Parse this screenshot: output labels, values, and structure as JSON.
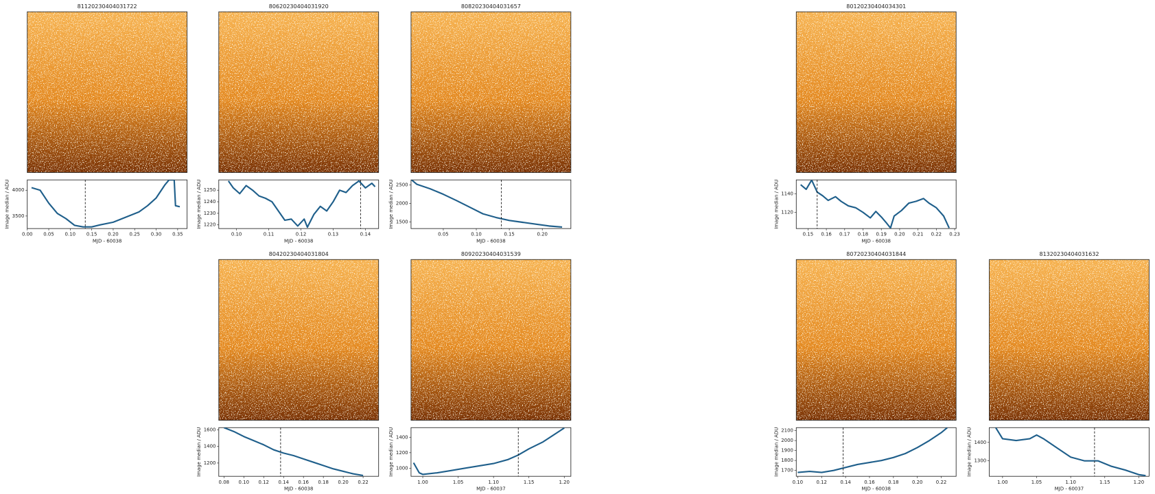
{
  "chart_data": [
    {
      "type": "line",
      "title": "81120230404031722",
      "xlabel": "MJD - 60038",
      "ylabel": "Image median / ADU",
      "color": "#1f5f8b",
      "marker_x": 0.135,
      "xlim": [
        0,
        0.372
      ],
      "ylim": [
        3257,
        4200
      ],
      "xticks": [
        {
          "value": 0,
          "label": "0.00"
        },
        0.05,
        {
          "value": 0.1,
          "label": "0.10"
        },
        0.15,
        {
          "value": 0.2,
          "label": "0.20"
        },
        0.25,
        {
          "value": 0.3,
          "label": "0.30"
        },
        0.35
      ],
      "yticks": [
        3500,
        4000
      ],
      "x": [
        0.01,
        0.03,
        0.05,
        0.07,
        0.09,
        0.11,
        0.13,
        0.15,
        0.17,
        0.2,
        0.23,
        0.26,
        0.28,
        0.3,
        0.32,
        0.33,
        0.342,
        0.345,
        0.355
      ],
      "values": [
        4050,
        4000,
        3750,
        3550,
        3450,
        3320,
        3290,
        3290,
        3330,
        3380,
        3480,
        3580,
        3700,
        3850,
        4100,
        4200,
        4200,
        3700,
        3680
      ]
    },
    {
      "type": "line",
      "title": "80620230404031920",
      "xlabel": "MJD - 60038",
      "ylabel": "Image median / ADU",
      "color": "#1f5f8b",
      "marker_x": 0.1385,
      "xlim": [
        0.0945,
        0.1441
      ],
      "ylim": [
        1216.8,
        1258.9
      ],
      "xticks": [
        {
          "value": 0.1,
          "label": "0.10"
        },
        0.11,
        0.12,
        0.13,
        0.14
      ],
      "yticks": [
        1220,
        1230,
        1240,
        1250
      ],
      "x": [
        0.0975,
        0.099,
        0.101,
        0.103,
        0.105,
        0.107,
        0.109,
        0.111,
        0.113,
        0.115,
        0.117,
        0.119,
        0.121,
        0.122,
        0.124,
        0.126,
        0.128,
        0.13,
        0.132,
        0.134,
        0.136,
        0.138,
        0.14,
        0.142,
        0.143
      ],
      "values": [
        1258,
        1252,
        1247,
        1254,
        1250,
        1245,
        1243,
        1240,
        1232,
        1224,
        1225,
        1219,
        1225,
        1218,
        1229,
        1236,
        1232,
        1240,
        1250,
        1248,
        1254,
        1258,
        1252,
        1256,
        1253
      ]
    },
    {
      "type": "line",
      "title": "80820230404031657",
      "xlabel": "MJD - 60038",
      "ylabel": "Image median / ADU",
      "color": "#1f5f8b",
      "marker_x": 0.138,
      "xlim": [
        0.0011,
        0.2433
      ],
      "ylim": [
        1320,
        2640
      ],
      "xticks": [
        0.05,
        {
          "value": 0.1,
          "label": "0.10"
        },
        0.15,
        {
          "value": 0.2,
          "label": "0.20"
        }
      ],
      "yticks": [
        1500,
        2000,
        2500
      ],
      "x": [
        0.002,
        0.01,
        0.03,
        0.05,
        0.07,
        0.09,
        0.11,
        0.13,
        0.15,
        0.17,
        0.19,
        0.21,
        0.23
      ],
      "values": [
        2640,
        2520,
        2400,
        2250,
        2080,
        1900,
        1720,
        1620,
        1540,
        1490,
        1440,
        1390,
        1360
      ]
    },
    {
      "type": "line",
      "title": "80120230404034301",
      "xlabel": "MJD - 60038",
      "ylabel": "Image median / ADU",
      "color": "#1f5f8b",
      "marker_x": 0.155,
      "xlim": [
        0.1436,
        0.2308
      ],
      "ylim": [
        1102.4,
        1155.2
      ],
      "xticks": [
        0.15,
        0.16,
        0.17,
        0.18,
        0.19,
        {
          "value": 0.2,
          "label": "0.20"
        },
        0.21,
        0.22,
        0.23
      ],
      "yticks": [
        1120,
        1140
      ],
      "x": [
        0.146,
        0.149,
        0.152,
        0.155,
        0.158,
        0.161,
        0.165,
        0.168,
        0.172,
        0.176,
        0.18,
        0.184,
        0.187,
        0.19,
        0.193,
        0.195,
        0.197,
        0.201,
        0.205,
        0.209,
        0.213,
        0.216,
        0.22,
        0.224,
        0.227
      ],
      "values": [
        1150,
        1145,
        1155,
        1142,
        1138,
        1133,
        1137,
        1132,
        1127,
        1125,
        1120,
        1114,
        1121,
        1115,
        1108,
        1103,
        1116,
        1122,
        1130,
        1132,
        1135,
        1130,
        1125,
        1116,
        1103
      ]
    },
    {
      "type": "line",
      "title": "80420230404031804",
      "xlabel": "MJD - 60038",
      "ylabel": "Image median / ADU",
      "color": "#1f5f8b",
      "marker_x": 0.137,
      "xlim": [
        0.0748,
        0.2356
      ],
      "ylim": [
        1040,
        1627
      ],
      "xticks": [
        0.08,
        {
          "value": 0.1,
          "label": "0.10"
        },
        0.12,
        0.14,
        0.16,
        0.18,
        {
          "value": 0.2,
          "label": "0.20"
        },
        0.22
      ],
      "yticks": [
        1200,
        1400,
        1600
      ],
      "x": [
        0.08,
        0.09,
        0.1,
        0.11,
        0.12,
        0.13,
        0.14,
        0.15,
        0.16,
        0.17,
        0.18,
        0.19,
        0.2,
        0.21,
        0.22
      ],
      "values": [
        1627,
        1580,
        1520,
        1470,
        1420,
        1360,
        1320,
        1290,
        1250,
        1210,
        1170,
        1130,
        1100,
        1070,
        1050
      ]
    },
    {
      "type": "line",
      "title": "80920230404031539",
      "xlabel": "MJD - 60037",
      "ylabel": "Image median / ADU",
      "color": "#1f5f8b",
      "marker_x": 1.135,
      "xlim": [
        0.9834,
        1.2093
      ],
      "ylim": [
        895,
        1524
      ],
      "xticks": [
        {
          "value": 1,
          "label": "1.00"
        },
        1.05,
        {
          "value": 1.1,
          "label": "1.10"
        },
        1.15,
        {
          "value": 1.2,
          "label": "1.20"
        }
      ],
      "yticks": [
        1000,
        1200,
        1400
      ],
      "x": [
        0.987,
        0.995,
        1,
        1.02,
        1.04,
        1.06,
        1.08,
        1.1,
        1.12,
        1.135,
        1.15,
        1.17,
        1.19,
        1.2
      ],
      "values": [
        1070,
        940,
        920,
        940,
        970,
        1000,
        1030,
        1060,
        1110,
        1170,
        1250,
        1340,
        1460,
        1520
      ]
    },
    {
      "type": "line",
      "title": "80720230404031844",
      "xlabel": "MJD - 60038",
      "ylabel": "Image median / ADU",
      "color": "#1f5f8b",
      "marker_x": 0.138,
      "xlim": [
        0.0988,
        0.2324
      ],
      "ylim": [
        1641,
        2130
      ],
      "xticks": [
        {
          "value": 0.1,
          "label": "0.10"
        },
        0.12,
        0.14,
        0.16,
        0.18,
        {
          "value": 0.2,
          "label": "0.20"
        },
        0.22
      ],
      "yticks": [
        1700,
        1800,
        1900,
        2000,
        2100
      ],
      "x": [
        0.1,
        0.11,
        0.12,
        0.13,
        0.14,
        0.15,
        0.16,
        0.17,
        0.18,
        0.19,
        0.2,
        0.21,
        0.22,
        0.225
      ],
      "values": [
        1680,
        1690,
        1680,
        1700,
        1730,
        1760,
        1780,
        1800,
        1830,
        1870,
        1930,
        2000,
        2080,
        2130
      ]
    },
    {
      "type": "line",
      "title": "81320230404031632",
      "xlabel": "MJD - 60037",
      "ylabel": "Image median / ADU",
      "color": "#1f5f8b",
      "marker_x": 1.135,
      "xlim": [
        0.9805,
        1.2151
      ],
      "ylim": [
        1216,
        1480
      ],
      "xticks": [
        {
          "value": 1,
          "label": "1.00"
        },
        1.05,
        {
          "value": 1.1,
          "label": "1.10"
        },
        1.15,
        {
          "value": 1.2,
          "label": "1.20"
        }
      ],
      "yticks": [
        1300,
        1400
      ],
      "x": [
        0.99,
        1,
        1.02,
        1.04,
        1.05,
        1.06,
        1.08,
        1.1,
        1.12,
        1.14,
        1.16,
        1.18,
        1.2,
        1.21
      ],
      "values": [
        1480,
        1420,
        1410,
        1420,
        1440,
        1420,
        1370,
        1320,
        1300,
        1300,
        1270,
        1250,
        1225,
        1220
      ]
    }
  ]
}
